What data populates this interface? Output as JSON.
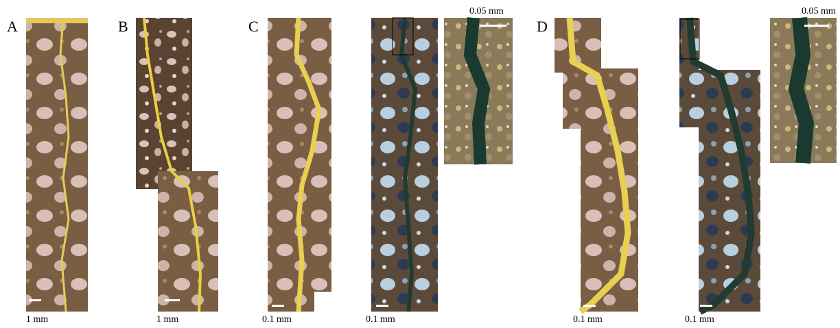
{
  "panels": [
    {
      "label": "A",
      "images": [
        {
          "scale": "1 mm"
        }
      ]
    },
    {
      "label": "B",
      "images": [
        {
          "scale": "1 mm"
        }
      ]
    },
    {
      "label": "C",
      "images": [
        {
          "scale": "0.1 mm"
        },
        {
          "scale": "0.1 mm"
        },
        {
          "scale": "0.05 mm"
        }
      ]
    },
    {
      "label": "D",
      "images": [
        {
          "scale": "0.1 mm"
        },
        {
          "scale": "0.1 mm"
        },
        {
          "scale": "0.05 mm"
        }
      ]
    }
  ]
}
